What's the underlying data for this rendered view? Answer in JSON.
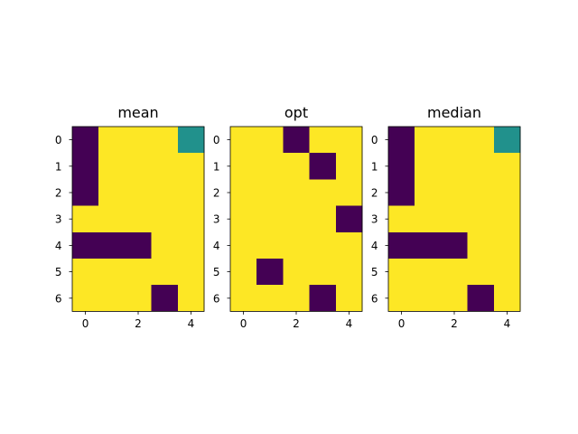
{
  "chart_data": [
    {
      "type": "heatmap",
      "title": "mean",
      "xticks": [
        0,
        2,
        4
      ],
      "yticks": [
        0,
        1,
        2,
        3,
        4,
        5,
        6
      ],
      "xlim": [
        -0.5,
        4.5
      ],
      "ylim": [
        6.5,
        -0.5
      ],
      "colormap": "viridis",
      "grid": false,
      "values": [
        [
          0,
          1,
          1,
          1,
          0.5
        ],
        [
          0,
          1,
          1,
          1,
          1
        ],
        [
          0,
          1,
          1,
          1,
          1
        ],
        [
          1,
          1,
          1,
          1,
          1
        ],
        [
          0,
          0,
          0,
          1,
          1
        ],
        [
          1,
          1,
          1,
          1,
          1
        ],
        [
          1,
          1,
          1,
          0,
          1
        ]
      ]
    },
    {
      "type": "heatmap",
      "title": "opt",
      "xticks": [
        0,
        2,
        4
      ],
      "yticks": [
        0,
        1,
        2,
        3,
        4,
        5,
        6
      ],
      "xlim": [
        -0.5,
        4.5
      ],
      "ylim": [
        6.5,
        -0.5
      ],
      "colormap": "viridis",
      "grid": false,
      "values": [
        [
          1,
          1,
          0,
          1,
          1
        ],
        [
          1,
          1,
          1,
          0,
          1
        ],
        [
          1,
          1,
          1,
          1,
          1
        ],
        [
          1,
          1,
          1,
          1,
          0
        ],
        [
          1,
          1,
          1,
          1,
          1
        ],
        [
          1,
          0,
          1,
          1,
          1
        ],
        [
          1,
          1,
          1,
          0,
          1
        ]
      ]
    },
    {
      "type": "heatmap",
      "title": "median",
      "xticks": [
        0,
        2,
        4
      ],
      "yticks": [
        0,
        1,
        2,
        3,
        4,
        5,
        6
      ],
      "xlim": [
        -0.5,
        4.5
      ],
      "ylim": [
        6.5,
        -0.5
      ],
      "colormap": "viridis",
      "grid": false,
      "values": [
        [
          0,
          1,
          1,
          1,
          0.5
        ],
        [
          0,
          1,
          1,
          1,
          1
        ],
        [
          0,
          1,
          1,
          1,
          1
        ],
        [
          1,
          1,
          1,
          1,
          1
        ],
        [
          0,
          0,
          0,
          1,
          1
        ],
        [
          1,
          1,
          1,
          1,
          1
        ],
        [
          1,
          1,
          1,
          0,
          1
        ]
      ]
    }
  ],
  "colors": {
    "low": "#440154",
    "mid": "#21918c",
    "high": "#fde725"
  }
}
